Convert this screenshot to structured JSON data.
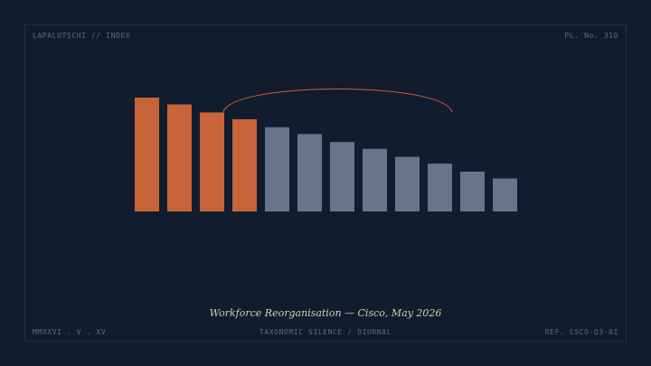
{
  "header": {
    "left": "LAPALUTSCHI // INDEX",
    "right": "PL. No. 310"
  },
  "footer": {
    "left": "MMXXVI . V . XV",
    "center": "TAXONOMIC SILENCE / DIURNAL",
    "right": "REF. CSCO-Q3-AI"
  },
  "colors": {
    "background": "#111c2f",
    "highlight": "#c8643a",
    "muted": "#66758c",
    "arc": "#c8643a"
  },
  "chart_data": {
    "type": "bar",
    "title": "Workforce Reorganisation — Cisco, May 2026",
    "xlabel": "",
    "ylabel": "",
    "ylim": [
      0,
      100
    ],
    "values": [
      100,
      94,
      87,
      81,
      74,
      68,
      61,
      55,
      48,
      42,
      35,
      29
    ],
    "highlighted": [
      true,
      true,
      true,
      true,
      false,
      false,
      false,
      false,
      false,
      false,
      false,
      false
    ],
    "annotation": {
      "type": "arc",
      "from_bar": 4,
      "to_bar": 10
    },
    "grid": false,
    "legend": "none"
  }
}
